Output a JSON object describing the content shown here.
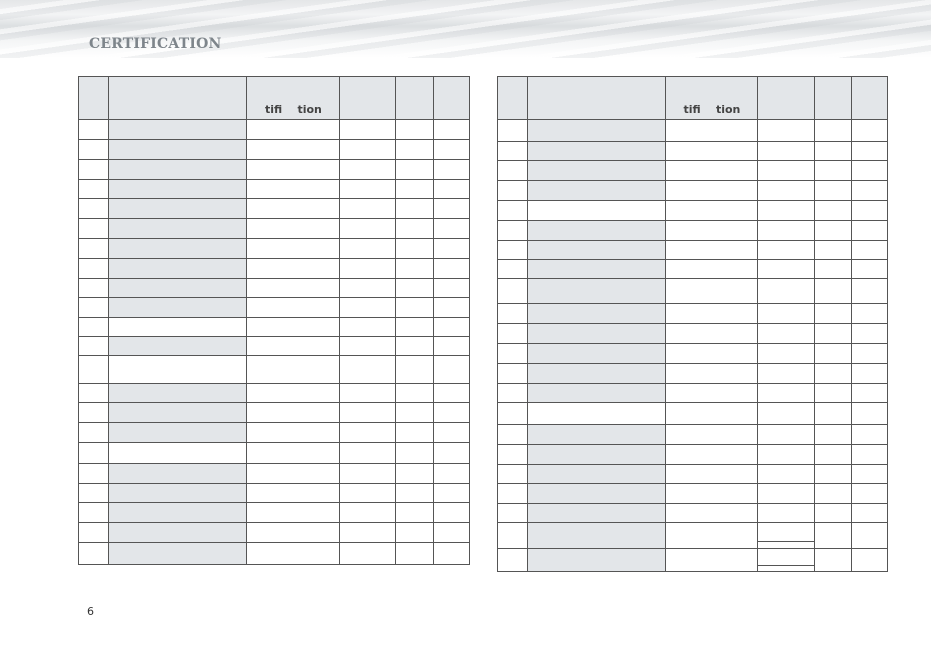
{
  "page": {
    "section_title": "CERTIFICATION",
    "page_number": "6"
  },
  "tables": [
    {
      "header_label": "tifi    tion"
    },
    {
      "header_label": "tifi    tion"
    }
  ],
  "colors": {
    "header_fill": "#e3e6e9",
    "title": "#7e858b",
    "border": "#555555"
  }
}
